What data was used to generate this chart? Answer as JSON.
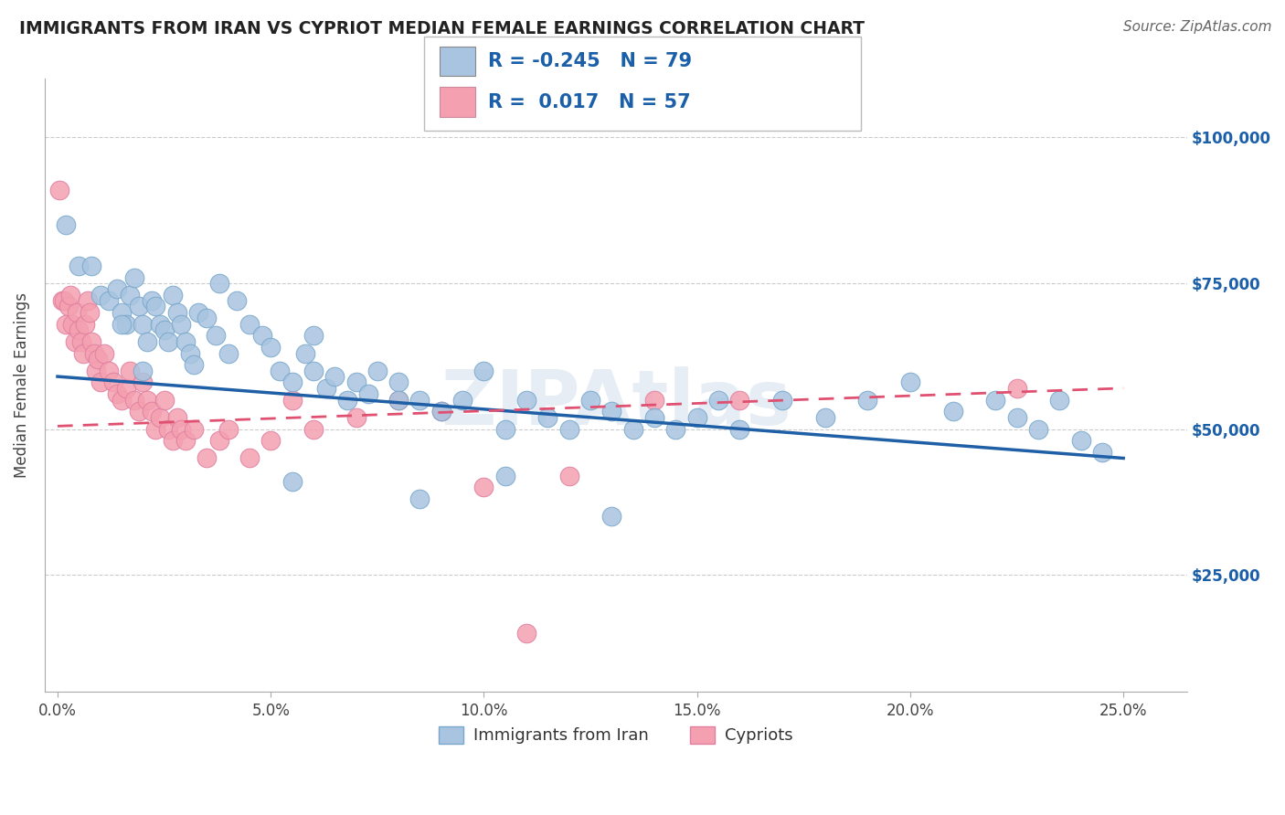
{
  "title": "IMMIGRANTS FROM IRAN VS CYPRIOT MEDIAN FEMALE EARNINGS CORRELATION CHART",
  "source": "Source: ZipAtlas.com",
  "ylabel": "Median Female Earnings",
  "xlabel_ticks": [
    "0.0%",
    "5.0%",
    "10.0%",
    "15.0%",
    "20.0%",
    "25.0%"
  ],
  "xlabel_vals": [
    0.0,
    5.0,
    10.0,
    15.0,
    20.0,
    25.0
  ],
  "ylabel_ticks": [
    "$25,000",
    "$50,000",
    "$75,000",
    "$100,000"
  ],
  "ylabel_vals": [
    25000,
    50000,
    75000,
    100000
  ],
  "xlim": [
    -0.3,
    26.5
  ],
  "ylim": [
    5000,
    110000
  ],
  "blue_label": "Immigrants from Iran",
  "pink_label": "Cypriots",
  "blue_R": "-0.245",
  "blue_N": "79",
  "pink_R": "0.017",
  "pink_N": "57",
  "blue_color": "#a8c4e0",
  "pink_color": "#f4a0b0",
  "blue_edge_color": "#7aa8cc",
  "pink_edge_color": "#e080a0",
  "blue_line_color": "#1f5fa6",
  "pink_line_color": "#e05070",
  "watermark": "ZIPAtlas",
  "blue_line_x0": 0,
  "blue_line_y0": 59000,
  "blue_line_x1": 25,
  "blue_line_y1": 45000,
  "pink_line_x0": 0,
  "pink_line_y0": 50500,
  "pink_line_x1": 25,
  "pink_line_y1": 57000,
  "blue_scatter_x": [
    0.2,
    0.5,
    0.8,
    1.0,
    1.2,
    1.4,
    1.5,
    1.6,
    1.7,
    1.8,
    1.9,
    2.0,
    2.1,
    2.2,
    2.3,
    2.4,
    2.5,
    2.6,
    2.7,
    2.8,
    2.9,
    3.0,
    3.1,
    3.2,
    3.3,
    3.5,
    3.7,
    4.0,
    4.2,
    4.5,
    4.8,
    5.0,
    5.2,
    5.5,
    5.8,
    6.0,
    6.3,
    6.5,
    6.8,
    7.0,
    7.3,
    7.5,
    8.0,
    8.5,
    9.0,
    9.5,
    10.0,
    10.5,
    11.0,
    11.5,
    12.0,
    12.5,
    13.0,
    13.5,
    14.0,
    14.5,
    15.0,
    15.5,
    16.0,
    17.0,
    18.0,
    19.0,
    20.0,
    21.0,
    22.0,
    22.5,
    23.0,
    23.5,
    24.0,
    24.5,
    5.5,
    8.5,
    13.0,
    2.0,
    1.5,
    3.8,
    6.0,
    8.0,
    10.5
  ],
  "blue_scatter_y": [
    85000,
    78000,
    78000,
    73000,
    72000,
    74000,
    70000,
    68000,
    73000,
    76000,
    71000,
    68000,
    65000,
    72000,
    71000,
    68000,
    67000,
    65000,
    73000,
    70000,
    68000,
    65000,
    63000,
    61000,
    70000,
    69000,
    66000,
    63000,
    72000,
    68000,
    66000,
    64000,
    60000,
    58000,
    63000,
    60000,
    57000,
    59000,
    55000,
    58000,
    56000,
    60000,
    58000,
    55000,
    53000,
    55000,
    60000,
    50000,
    55000,
    52000,
    50000,
    55000,
    53000,
    50000,
    52000,
    50000,
    52000,
    55000,
    50000,
    55000,
    52000,
    55000,
    58000,
    53000,
    55000,
    52000,
    50000,
    55000,
    48000,
    46000,
    41000,
    38000,
    35000,
    60000,
    68000,
    75000,
    66000,
    55000,
    42000
  ],
  "pink_scatter_x": [
    0.05,
    0.1,
    0.15,
    0.2,
    0.25,
    0.3,
    0.35,
    0.4,
    0.45,
    0.5,
    0.55,
    0.6,
    0.65,
    0.7,
    0.75,
    0.8,
    0.85,
    0.9,
    0.95,
    1.0,
    1.1,
    1.2,
    1.3,
    1.4,
    1.5,
    1.6,
    1.7,
    1.8,
    1.9,
    2.0,
    2.1,
    2.2,
    2.3,
    2.4,
    2.5,
    2.6,
    2.7,
    2.8,
    2.9,
    3.0,
    3.2,
    3.5,
    3.8,
    4.0,
    4.5,
    5.0,
    5.5,
    6.0,
    7.0,
    8.0,
    9.0,
    10.0,
    11.0,
    12.0,
    14.0,
    16.0,
    22.5
  ],
  "pink_scatter_y": [
    91000,
    72000,
    72000,
    68000,
    71000,
    73000,
    68000,
    65000,
    70000,
    67000,
    65000,
    63000,
    68000,
    72000,
    70000,
    65000,
    63000,
    60000,
    62000,
    58000,
    63000,
    60000,
    58000,
    56000,
    55000,
    57000,
    60000,
    55000,
    53000,
    58000,
    55000,
    53000,
    50000,
    52000,
    55000,
    50000,
    48000,
    52000,
    50000,
    48000,
    50000,
    45000,
    48000,
    50000,
    45000,
    48000,
    55000,
    50000,
    52000,
    55000,
    53000,
    40000,
    15000,
    42000,
    55000,
    55000,
    57000
  ]
}
